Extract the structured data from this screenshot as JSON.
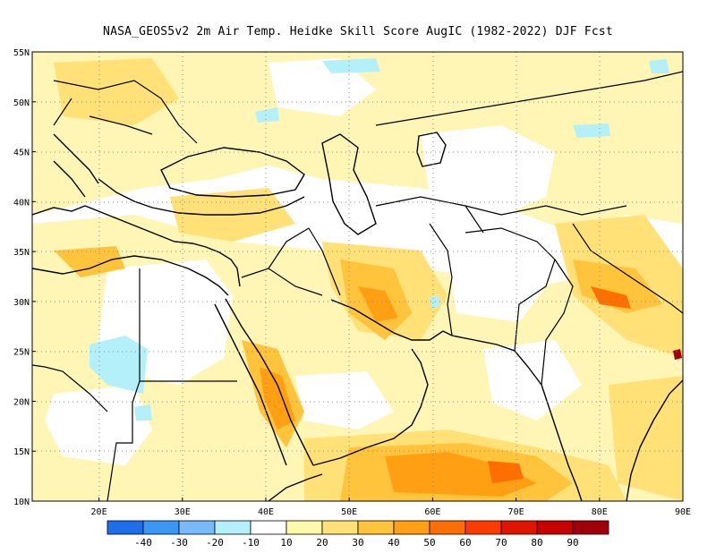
{
  "title": "NASA_GEOS5v2  2m Air Temp. Heidke Skill Score AugIC (1982-2022) DJF Fcst",
  "map": {
    "lon_range": [
      12,
      90
    ],
    "lat_range": [
      10,
      55
    ],
    "x_ticks": [
      "20E",
      "30E",
      "40E",
      "50E",
      "60E",
      "70E",
      "80E",
      "90E"
    ],
    "y_ticks": [
      "55N",
      "50N",
      "45N",
      "40N",
      "35N",
      "30N",
      "25N",
      "20N",
      "15N",
      "10N"
    ],
    "gridlines": "dotted",
    "fill_colors": {
      "light_yellow": "#fff6b6",
      "yellow": "#ffe178",
      "gold": "#ffc33c",
      "orange": "#ffa014",
      "dark_orange": "#ff6e00",
      "light_cyan": "#b4f0fa",
      "brown": "#a0000a"
    }
  },
  "colorbar": {
    "labels": [
      "-40",
      "-30",
      "-20",
      "-10",
      "10",
      "20",
      "30",
      "40",
      "50",
      "60",
      "70",
      "80",
      "90"
    ],
    "colors": [
      "#1e6eeb",
      "#3c96f5",
      "#78b9fa",
      "#b4f0fa",
      "#ffffff",
      "#fffaaa",
      "#ffe178",
      "#ffc33c",
      "#ffa014",
      "#ff6e00",
      "#ff3c00",
      "#e11400",
      "#c80000",
      "#a0000a"
    ]
  }
}
